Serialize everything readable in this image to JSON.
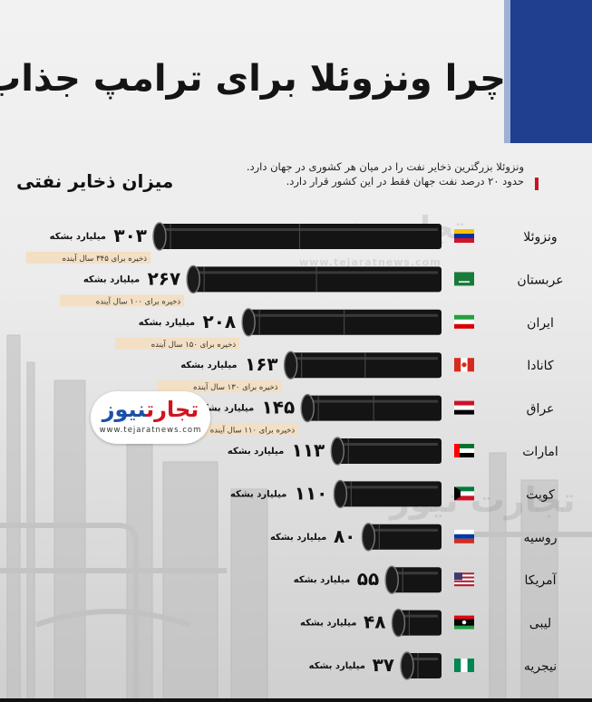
{
  "title": "چرا ونزوئلا برای ترامپ جذاب است؟",
  "description": [
    "ونزوئلا بزرگترین ذخایر نفت را در میان هر کشوری در جهان دارد.",
    "حدود ۲۰ درصد نفت جهان فقط در این کشور قرار دارد."
  ],
  "logo": {
    "part1": "تجارت",
    "part2": "نیوز",
    "url": "www.tejaratnews.com"
  },
  "watermark": {
    "name": "تجارت نیوز",
    "url": "www.tejaratnews.com"
  },
  "colors": {
    "accent_blue": "#1f3f8f",
    "accent_red": "#c8141e",
    "pipe": "#141414",
    "note_bg": "#f3dfc4"
  },
  "chart_data": {
    "type": "bar",
    "orientation": "horizontal",
    "title": "میزان ذخایر نفتی",
    "unit": "میلیارد بشکه",
    "categories": [
      "ونزوئلا",
      "عربستان",
      "ایران",
      "کانادا",
      "عراق",
      "امارات",
      "کویت",
      "روسیه",
      "آمریکا",
      "لیبی",
      "نیجریه"
    ],
    "values": [
      303,
      267,
      208,
      163,
      145,
      113,
      110,
      80,
      55,
      48,
      37
    ],
    "value_labels": [
      "۳۰۳",
      "۲۶۷",
      "۲۰۸",
      "۱۶۳",
      "۱۴۵",
      "۱۱۳",
      "۱۱۰",
      "۸۰",
      "۵۵",
      "۴۸",
      "۳۷"
    ],
    "notes": [
      "ذخیره برای ۳۴۵ سال آینده",
      "ذخیره برای ۱۰۰ سال آینده",
      "ذخیره برای ۱۵۰ سال آینده",
      "ذخیره برای ۱۳۰ سال آینده",
      "ذخیره برای ۱۱۰ سال آینده",
      "",
      "",
      "",
      "",
      "",
      ""
    ],
    "flags": [
      "venezuela-flag",
      "saudi-flag",
      "iran-flag",
      "canada-flag",
      "iraq-flag",
      "uae-flag",
      "kuwait-flag",
      "russia-flag",
      "usa-flag",
      "libya-flag",
      "nigeria-flag"
    ]
  }
}
